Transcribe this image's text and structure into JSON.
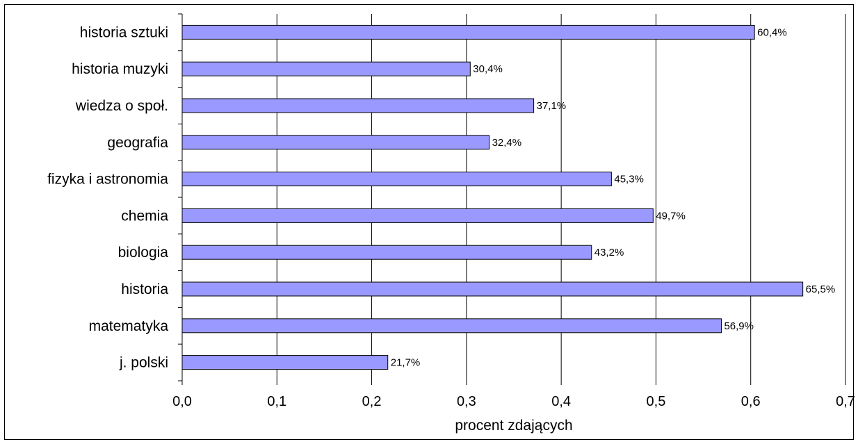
{
  "chart_data": {
    "type": "bar",
    "orientation": "horizontal",
    "categories": [
      "historia sztuki",
      "historia muzyki",
      "wiedza o społ.",
      "geografia",
      "fizyka i astronomia",
      "chemia",
      "biologia",
      "historia",
      "matematyka",
      "j. polski"
    ],
    "values": [
      0.604,
      0.304,
      0.371,
      0.324,
      0.453,
      0.497,
      0.432,
      0.655,
      0.569,
      0.217
    ],
    "data_labels": [
      "60,4%",
      "30,4%",
      "37,1%",
      "32,4%",
      "45,3%",
      "49,7%",
      "43,2%",
      "65,5%",
      "56,9%",
      "21,7%"
    ],
    "xlabel": "procent zdających",
    "xlim": [
      0,
      0.7
    ],
    "xticks": [
      0,
      0.1,
      0.2,
      0.3,
      0.4,
      0.5,
      0.6,
      0.7
    ],
    "xtick_labels": [
      "0,0",
      "0,1",
      "0,2",
      "0,3",
      "0,4",
      "0,5",
      "0,6",
      "0,7"
    ],
    "grid": "vertical",
    "legend": "none",
    "bar_color": "#9999ff"
  }
}
